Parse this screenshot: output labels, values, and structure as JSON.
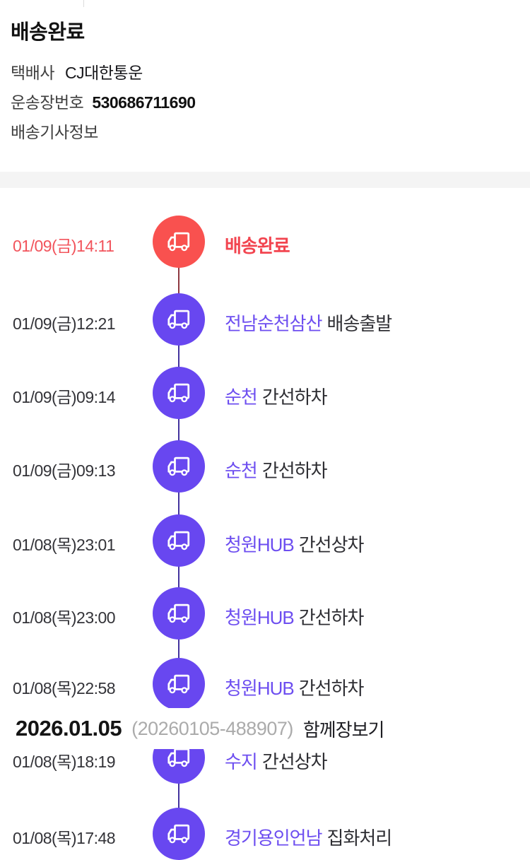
{
  "header": {
    "status_title": "배송완료",
    "courier_label": "택배사",
    "courier_value": "CJ대한통운",
    "tracking_label": "운송장번호",
    "tracking_value": "530686711690",
    "driver_info_label": "배송기사정보"
  },
  "colors": {
    "node_red": "#f9514f",
    "node_purple": "#6847f0",
    "connector_red": "#8e3840",
    "connector_purple": "#43339e",
    "location_purple": "#6d4ef0",
    "highlight_text_red": "#f2444f",
    "date_text": "#333338",
    "status_text": "#2e2e33",
    "divider_gray": "#f4f4f4",
    "order_no_gray": "#ababab"
  },
  "icons": {
    "truck": "truck-icon"
  },
  "timeline": [
    {
      "date": "01/09(금)14:11",
      "location": "",
      "action": "배송완료",
      "highlight": true
    },
    {
      "date": "01/09(금)12:21",
      "location": "전남순천삼산",
      "action": "배송출발",
      "highlight": false
    },
    {
      "date": "01/09(금)09:14",
      "location": "순천",
      "action": "간선하차",
      "highlight": false
    },
    {
      "date": "01/09(금)09:13",
      "location": "순천",
      "action": "간선하차",
      "highlight": false
    },
    {
      "date": "01/08(목)23:01",
      "location": "청원HUB",
      "action": "간선상차",
      "highlight": false
    },
    {
      "date": "01/08(목)23:00",
      "location": "청원HUB",
      "action": "간선하차",
      "highlight": false
    },
    {
      "date": "01/08(목)22:58",
      "location": "청원HUB",
      "action": "간선하차",
      "highlight": false
    },
    {
      "date": "01/08(목)18:19",
      "location": "수지",
      "action": "간선상차",
      "highlight": false
    },
    {
      "date": "01/08(목)17:48",
      "location": "경기용인언남",
      "action": "집화처리",
      "highlight": false
    }
  ],
  "sticky_date_header": {
    "date": "2026.01.05",
    "order_no": "(20260105-488907)",
    "link_label": "함께장보기"
  }
}
